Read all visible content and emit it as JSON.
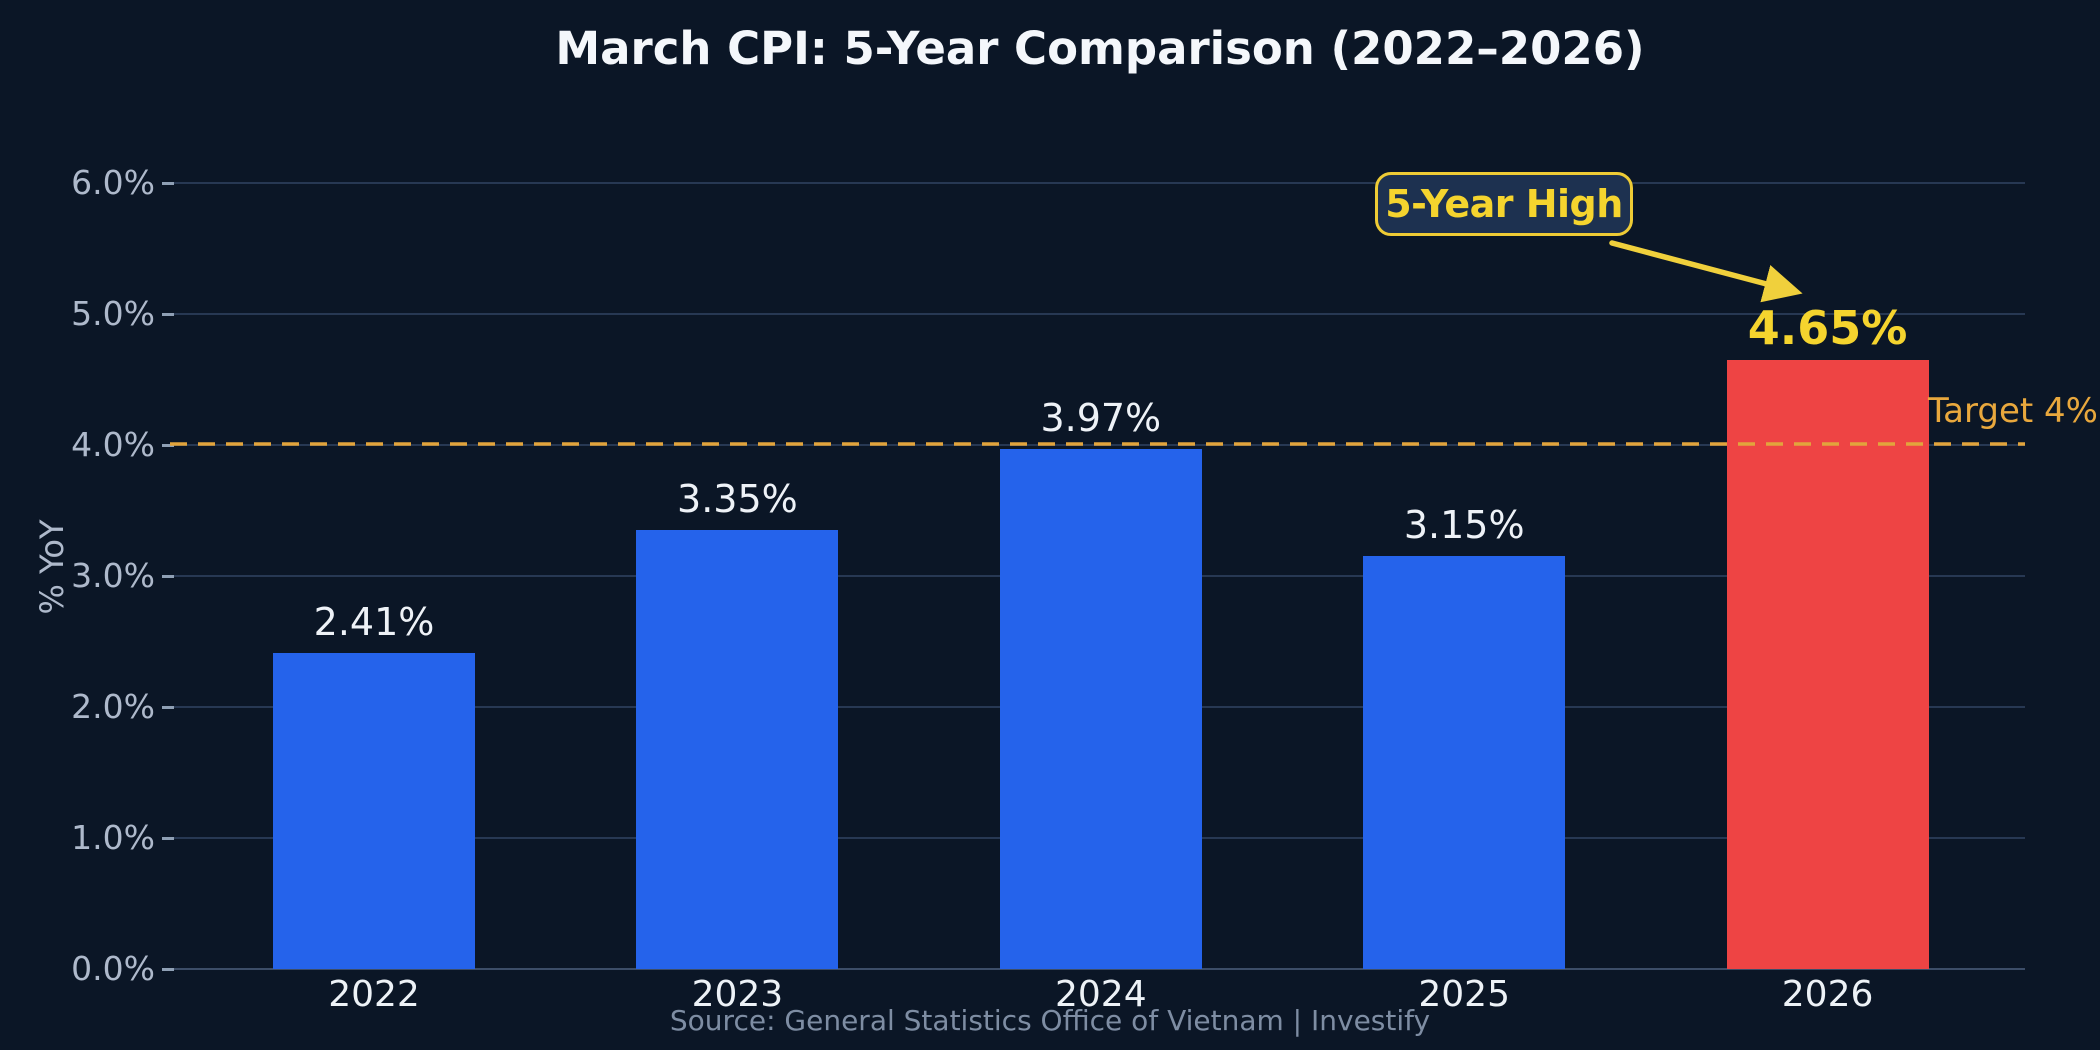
{
  "chart_data": {
    "type": "bar",
    "title": "March CPI: 5-Year Comparison (2022–2026)",
    "ylabel": "% YoY",
    "categories": [
      "2022",
      "2023",
      "2024",
      "2025",
      "2026"
    ],
    "values": [
      2.41,
      3.35,
      3.97,
      3.15,
      4.65
    ],
    "value_labels": [
      "2.41%",
      "3.35%",
      "3.97%",
      "3.15%",
      "4.65%"
    ],
    "ytick_labels": [
      "0.0%",
      "1.0%",
      "2.0%",
      "3.0%",
      "4.0%",
      "5.0%",
      "6.0%"
    ],
    "ylim": [
      0,
      6
    ],
    "grid": "horizontal",
    "legend": "none",
    "highlight_index": 4,
    "target_line": {
      "value": 4.0,
      "label": "Target 4%"
    },
    "annotation": {
      "text": "5-Year High",
      "points_to_value": "4.65%"
    },
    "source": "Source: General Statistics Office of Vietnam  |  Investify"
  },
  "colors": {
    "background": "#0b1626",
    "bar_blue": "#2563eb",
    "bar_red": "#ee4444",
    "annotation_yellow": "#f5d42e",
    "arrow_yellow": "#f0d03c",
    "target_orange": "#e2a43c",
    "text_white": "#eef2f7",
    "tick_gray": "#aeb9cb"
  }
}
